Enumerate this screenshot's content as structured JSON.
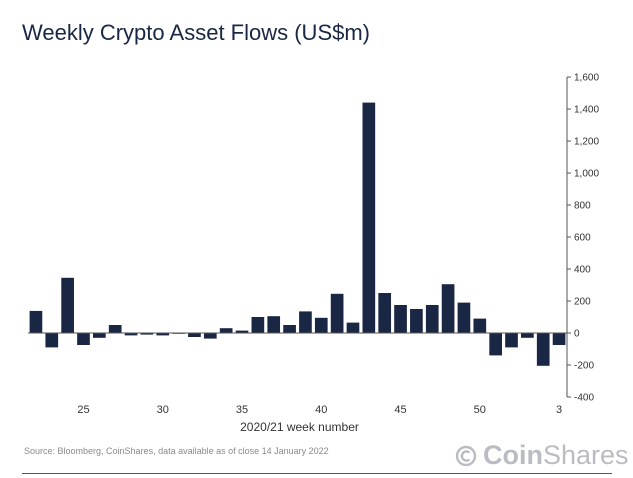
{
  "title": "Weekly Crypto Asset Flows (US$m)",
  "source": "Source: Bloomberg, CoinShares, data available as of close 14 January 2022",
  "brand": {
    "name_bold": "Coin",
    "name_light": "Shares",
    "logo_icon": "coinshares-logo-icon"
  },
  "colors": {
    "bar": "#1a2744",
    "axis": "#555555",
    "text": "#333333"
  },
  "chart_data": {
    "type": "bar",
    "title": "Weekly Crypto Asset Flows (US$m)",
    "xlabel": "2020/21 week number",
    "ylabel": "",
    "ylim": [
      -400,
      1600
    ],
    "yticks": [
      -400,
      -200,
      0,
      200,
      400,
      600,
      800,
      1000,
      1200,
      1400,
      1600
    ],
    "ytick_labels": [
      "-400",
      "-200",
      "0",
      "200",
      "400",
      "600",
      "800",
      "1,000",
      "1,200",
      "1,400",
      "1,600"
    ],
    "y_axis_side": "right",
    "grid": false,
    "legend": "none",
    "categories": [
      22,
      23,
      24,
      25,
      26,
      27,
      28,
      29,
      30,
      31,
      32,
      33,
      34,
      35,
      36,
      37,
      38,
      39,
      40,
      41,
      42,
      43,
      44,
      45,
      46,
      47,
      48,
      49,
      50,
      51,
      52,
      1,
      2,
      3
    ],
    "xtick_labels": [
      {
        "category": 25,
        "label": "25"
      },
      {
        "category": 30,
        "label": "30"
      },
      {
        "category": 35,
        "label": "35"
      },
      {
        "category": 40,
        "label": "40"
      },
      {
        "category": 45,
        "label": "45"
      },
      {
        "category": 50,
        "label": "50"
      },
      {
        "category": 3,
        "label": "3"
      }
    ],
    "values": [
      138,
      -90,
      345,
      -75,
      -30,
      50,
      -15,
      -10,
      -15,
      -5,
      -25,
      -35,
      30,
      15,
      100,
      105,
      50,
      135,
      95,
      245,
      65,
      1440,
      250,
      175,
      150,
      175,
      305,
      190,
      90,
      -140,
      -90,
      -30,
      -205,
      -75
    ]
  }
}
